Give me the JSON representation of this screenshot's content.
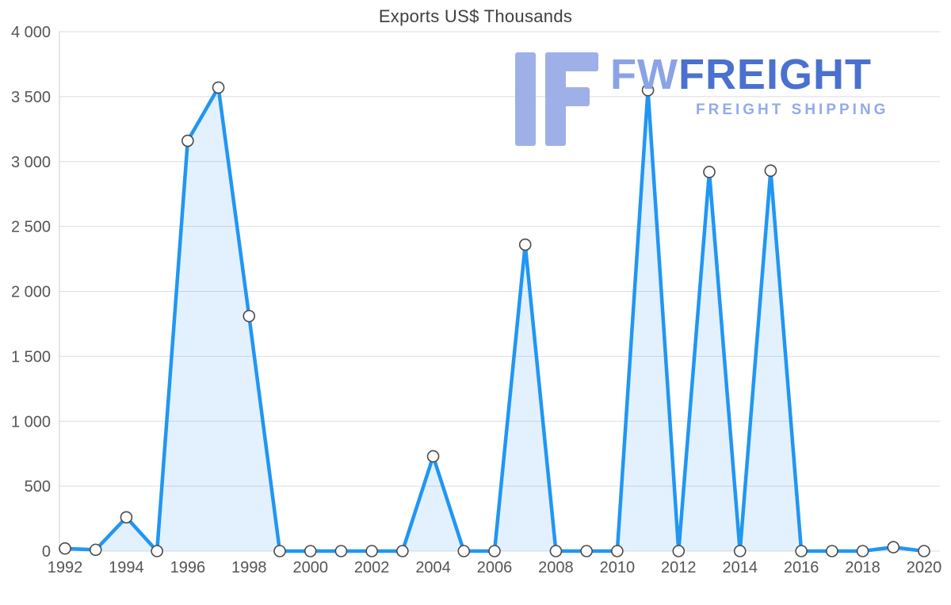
{
  "chart_data": {
    "type": "area",
    "title": "Exports US$ Thousands",
    "xlabel": "",
    "ylabel": "",
    "x": [
      1992,
      1993,
      1994,
      1995,
      1996,
      1997,
      1998,
      1999,
      2000,
      2001,
      2002,
      2003,
      2004,
      2005,
      2006,
      2007,
      2008,
      2009,
      2010,
      2011,
      2012,
      2013,
      2014,
      2015,
      2016,
      2017,
      2018,
      2019,
      2020
    ],
    "values": [
      20,
      10,
      260,
      0,
      3160,
      3570,
      1810,
      0,
      0,
      0,
      0,
      0,
      730,
      0,
      0,
      2360,
      0,
      0,
      0,
      3550,
      0,
      2920,
      0,
      2930,
      0,
      0,
      0,
      30,
      0
    ],
    "ylim": [
      0,
      4000
    ],
    "grid": true,
    "legend": "none",
    "yticks": {
      "values": [
        0,
        500,
        1000,
        1500,
        2000,
        2500,
        3000,
        3500,
        4000
      ],
      "labels": [
        "0",
        "500",
        "1 000",
        "1 500",
        "2 000",
        "2 500",
        "3 000",
        "3 500",
        "4 000"
      ]
    },
    "xticks": {
      "values": [
        1992,
        1994,
        1996,
        1998,
        2000,
        2002,
        2004,
        2006,
        2008,
        2010,
        2012,
        2014,
        2016,
        2018,
        2020
      ],
      "labels": [
        "1992",
        "1994",
        "1996",
        "1998",
        "2000",
        "2002",
        "2004",
        "2006",
        "2008",
        "2010",
        "2012",
        "2014",
        "2016",
        "2018",
        "2020"
      ]
    },
    "colors": {
      "line": "#2196f3",
      "fill": "#2196f3",
      "fill_opacity": 0.13,
      "marker_fill": "#ffffff",
      "marker_stroke": "#4a4a4a",
      "grid": "#dedede",
      "axis": "#cccccc",
      "tick_text": "#555555",
      "title_text": "#3f3f3f"
    }
  },
  "watermark": {
    "brand_prefix": "FW",
    "brand_suffix": "FREIGHT",
    "subtitle": "FREIGHT SHIPPING",
    "colors": {
      "logo": "#9fb0e8",
      "prefix": "#8ba3e6",
      "suffix": "#4a71cf",
      "subtitle": "#93abe8"
    }
  }
}
